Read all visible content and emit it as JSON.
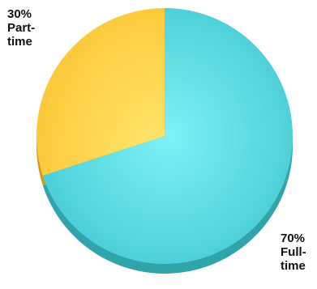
{
  "chart_data": {
    "type": "pie",
    "slices": [
      {
        "category": "Full-time",
        "value": 70,
        "color": "#5fdde4",
        "side_color": "#2fa4ab"
      },
      {
        "category": "Part-time",
        "value": 30,
        "color": "#fdd34a",
        "side_color": "#c99d1d"
      }
    ],
    "labels": [
      {
        "lines": [
          "70%",
          "Full-",
          "time"
        ]
      },
      {
        "lines": [
          "30%",
          "Part-",
          "time"
        ]
      }
    ],
    "start": "12 o'clock",
    "direction": "clockwise",
    "style": "3d"
  }
}
